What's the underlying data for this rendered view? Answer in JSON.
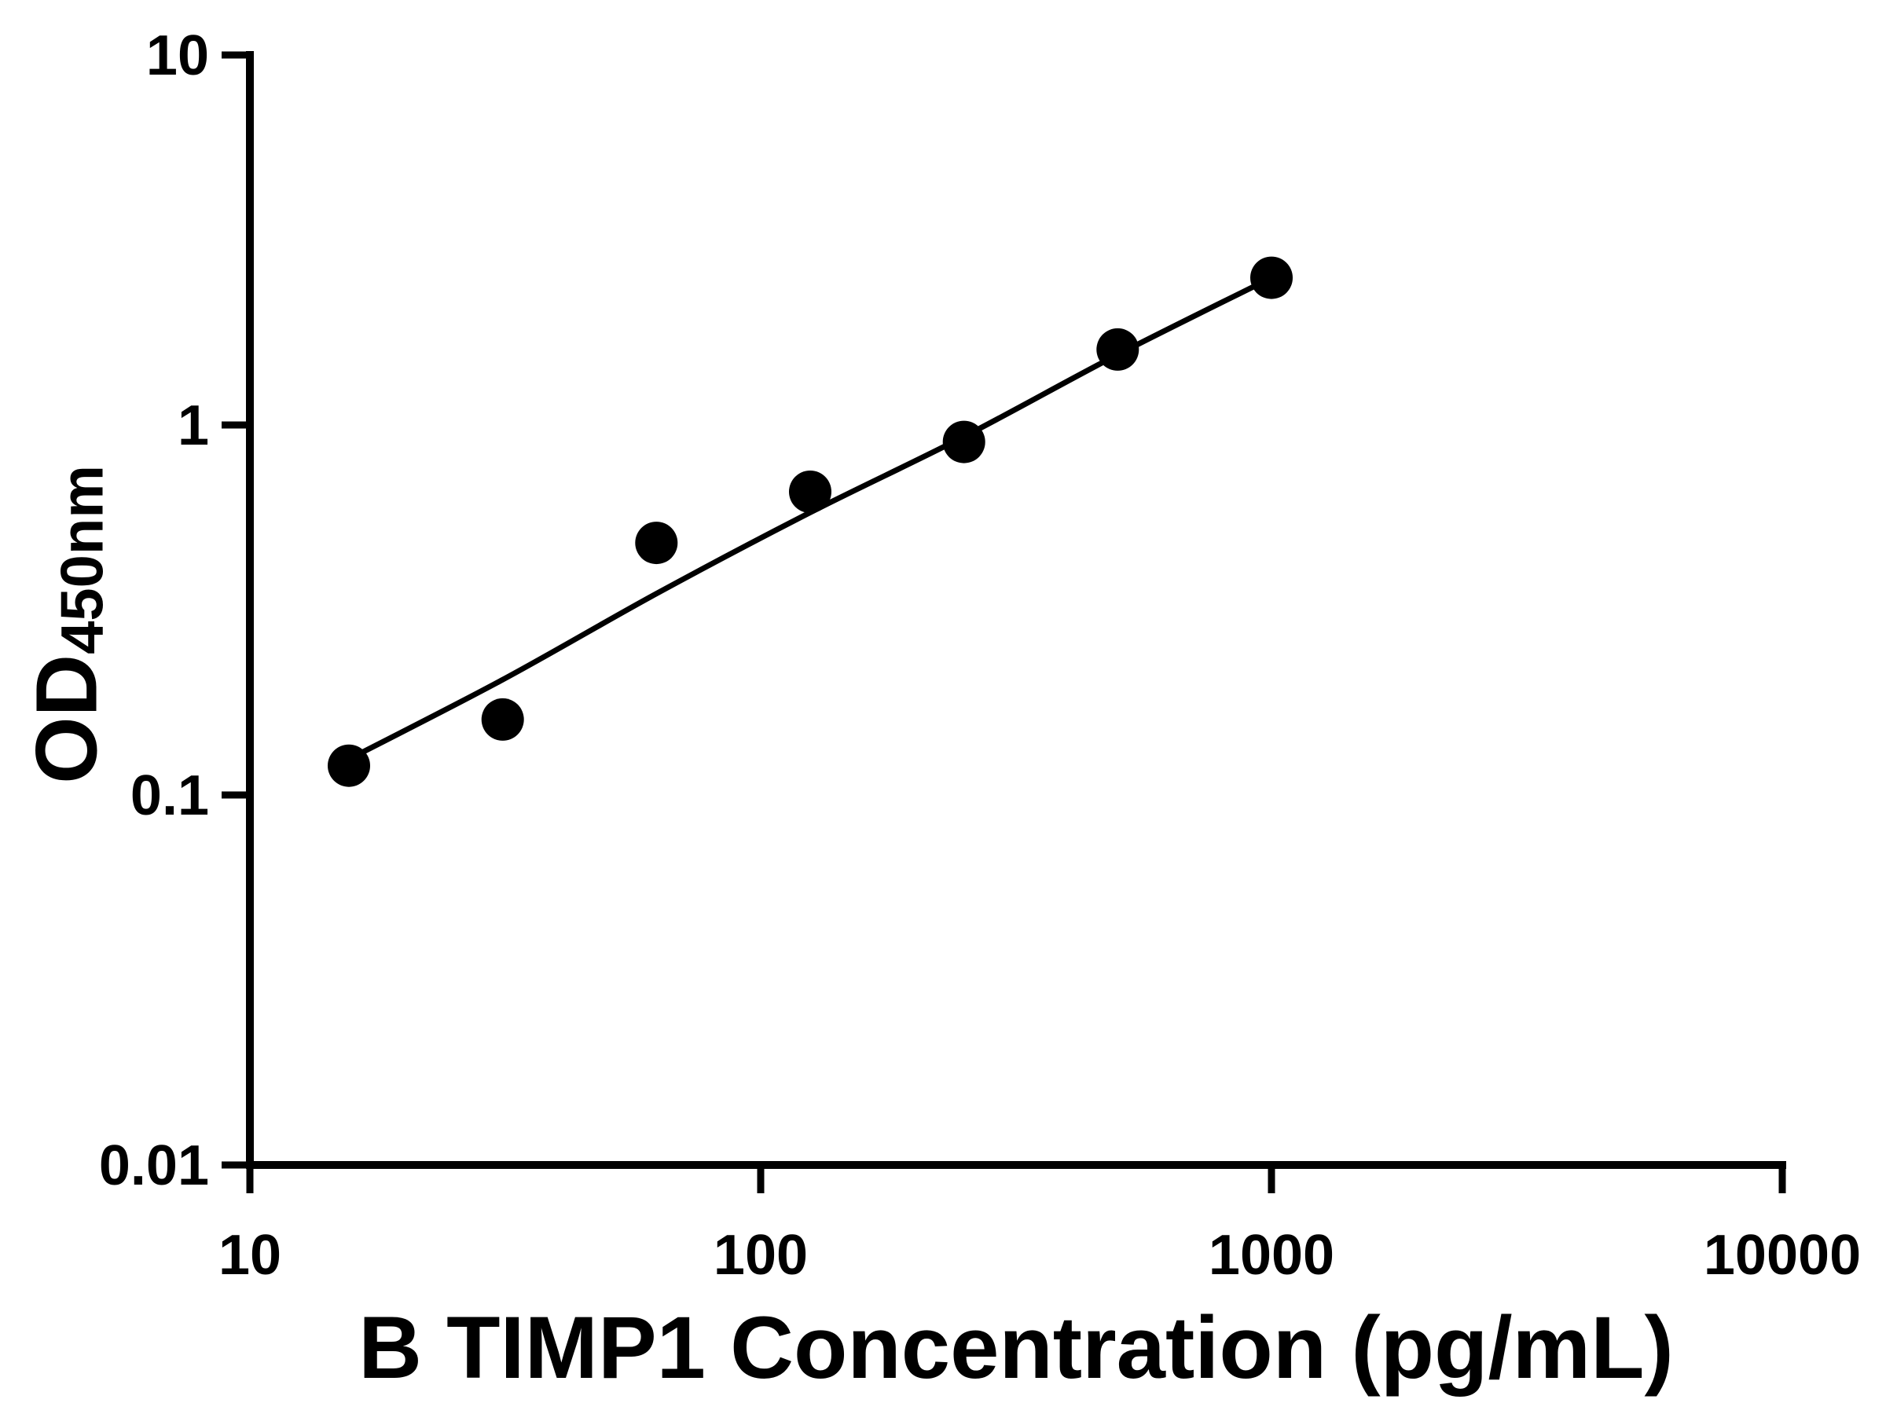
{
  "chart_data": {
    "type": "scatter",
    "title": "",
    "xlabel": "B TIMP1 Concentration (pg/mL)",
    "ylabel_main": "OD",
    "ylabel_sub": "450nm",
    "x_scale": "log",
    "y_scale": "log",
    "xlim": [
      10,
      10000
    ],
    "ylim": [
      0.01,
      10
    ],
    "x_ticks": [
      10,
      100,
      1000,
      10000
    ],
    "x_tick_labels": [
      "10",
      "100",
      "1000",
      "10000"
    ],
    "y_ticks": [
      10,
      1,
      0.1,
      0.01
    ],
    "y_tick_labels": [
      "10",
      "1",
      "0.1",
      "0.01"
    ],
    "grid": false,
    "legend": false,
    "background": "#ffffff",
    "axis_color": "#000000",
    "marker_color": "#000000",
    "line_color": "#000000",
    "points": [
      {
        "x": 15.625,
        "y": 0.12
      },
      {
        "x": 31.25,
        "y": 0.16
      },
      {
        "x": 62.5,
        "y": 0.48
      },
      {
        "x": 125,
        "y": 0.66
      },
      {
        "x": 250,
        "y": 0.9
      },
      {
        "x": 500,
        "y": 1.6
      },
      {
        "x": 1000,
        "y": 2.5
      }
    ],
    "trend_line": [
      {
        "x": 15.625,
        "y": 0.125
      },
      {
        "x": 31.25,
        "y": 0.205
      },
      {
        "x": 62.5,
        "y": 0.35
      },
      {
        "x": 125,
        "y": 0.58
      },
      {
        "x": 250,
        "y": 0.93
      },
      {
        "x": 500,
        "y": 1.55
      },
      {
        "x": 1000,
        "y": 2.5
      }
    ]
  }
}
